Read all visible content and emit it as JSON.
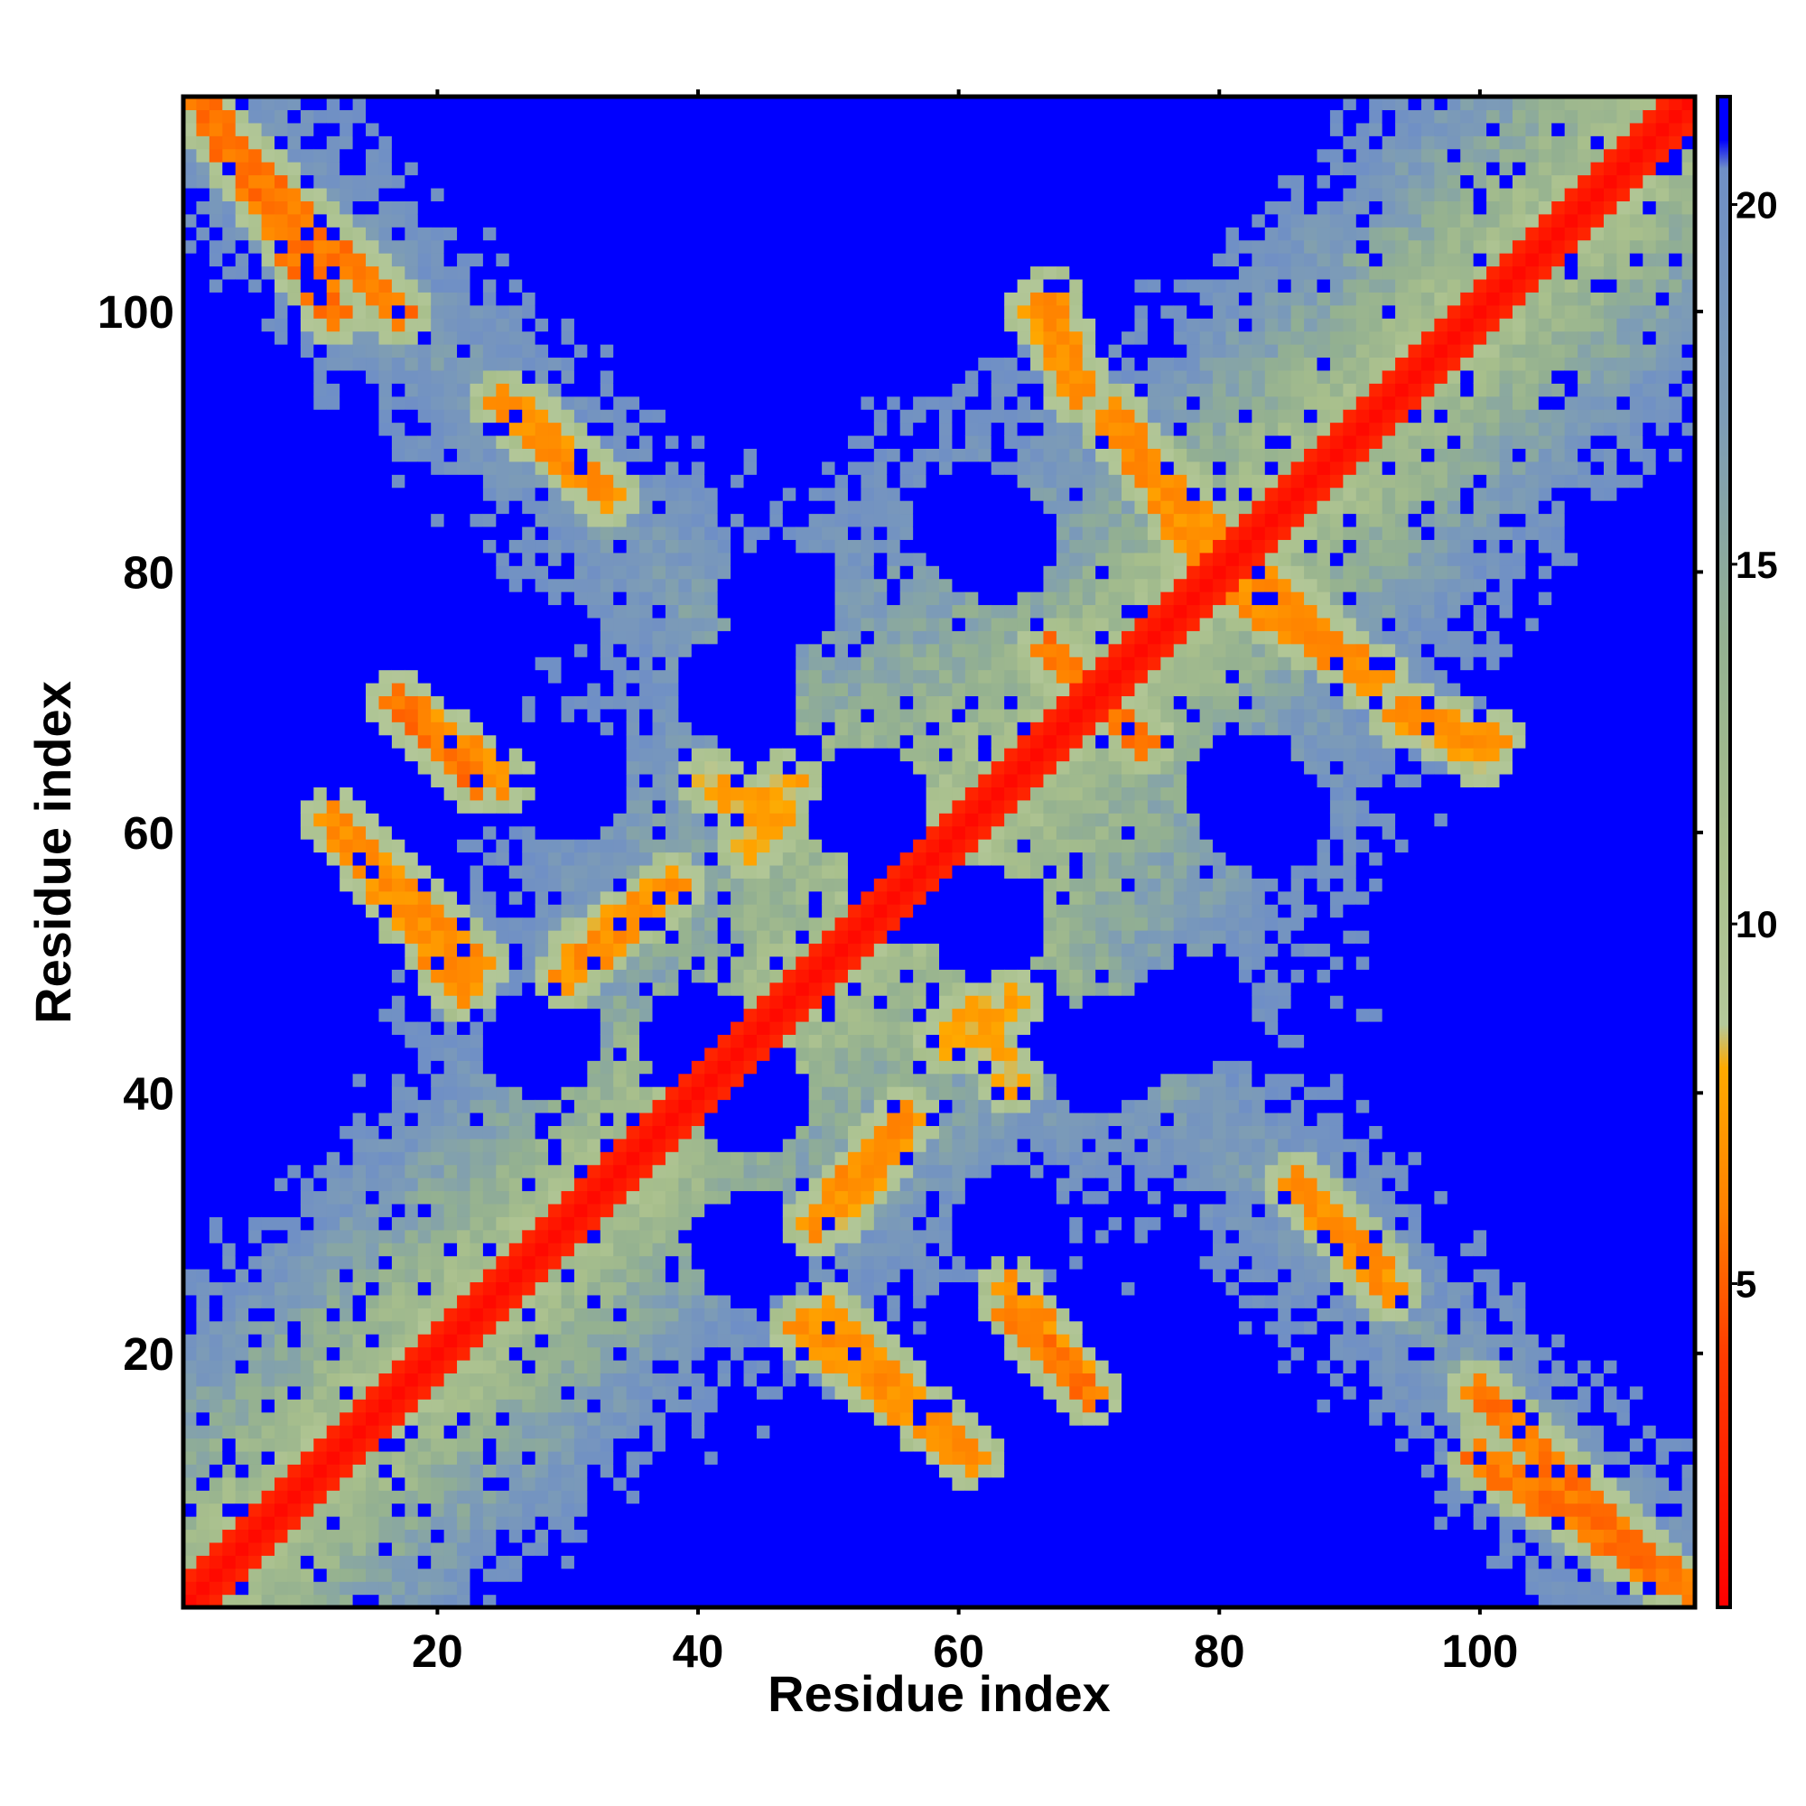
{
  "chart_data": {
    "type": "heatmap",
    "title": "",
    "xlabel": "Residue index",
    "ylabel": "Residue index",
    "n": 116,
    "xlim": [
      0.5,
      116.5
    ],
    "ylim": [
      0.5,
      116.5
    ],
    "xticks": [
      20,
      40,
      60,
      80,
      100
    ],
    "yticks": [
      20,
      40,
      60,
      80,
      100
    ],
    "colorbar": {
      "ticks": [
        5,
        10,
        15,
        20
      ],
      "range": [
        0.5,
        21.5
      ],
      "stops": [
        {
          "v": 0.5,
          "color": "#ff0000"
        },
        {
          "v": 4.0,
          "color": "#ff3c00"
        },
        {
          "v": 6.0,
          "color": "#ff8000"
        },
        {
          "v": 8.0,
          "color": "#ffaa00"
        },
        {
          "v": 8.6,
          "color": "#b4c89a"
        },
        {
          "v": 11.0,
          "color": "#a8bf8c"
        },
        {
          "v": 14.0,
          "color": "#93b091"
        },
        {
          "v": 17.0,
          "color": "#7d9cb6"
        },
        {
          "v": 20.5,
          "color": "#6f8fc6"
        },
        {
          "v": 20.9,
          "color": "#0000ff"
        },
        {
          "v": 21.5,
          "color": "#0000ff"
        }
      ],
      "cap_value": 21
    },
    "features": {
      "main_diagonal": {
        "description_values": "distance ~1-3 on |i-j|<=3",
        "width": 3
      },
      "anti_diagonal_bands": [
        {
          "from": [
            1,
            116
          ],
          "to": [
            30,
            84
          ]
        },
        {
          "from": [
            30,
            84
          ],
          "to": [
            58,
            56
          ]
        },
        {
          "from": [
            84,
            30
          ],
          "to": [
            116,
            1
          ]
        }
      ],
      "contact_segments": [
        {
          "x": [
            2,
            12
          ],
          "y": [
            116,
            100
          ],
          "value": 5
        },
        {
          "x": [
            25,
            33
          ],
          "y": [
            93,
            86
          ],
          "value": 6
        },
        {
          "x": [
            17,
            23
          ],
          "y": [
            70,
            64
          ],
          "value": 5
        },
        {
          "x": [
            12,
            22
          ],
          "y": [
            61,
            48
          ],
          "value": 6
        },
        {
          "x": [
            30,
            38
          ],
          "y": [
            49,
            56
          ],
          "value": 6
        },
        {
          "x": [
            44,
            47
          ],
          "y": [
            59,
            64
          ],
          "value": 7
        },
        {
          "x": [
            50,
            60
          ],
          "y": [
            23,
            13
          ],
          "value": 6
        },
        {
          "x": [
            64,
            70
          ],
          "y": [
            25,
            17
          ],
          "value": 6
        },
        {
          "x": [
            51,
            56
          ],
          "y": [
            31,
            38
          ],
          "value": 7
        },
        {
          "x": [
            67,
            69
          ],
          "y": [
            101,
            94
          ],
          "value": 6
        },
        {
          "x": [
            72,
            80
          ],
          "y": [
            91,
            83
          ],
          "value": 6
        },
        {
          "x": [
            82,
            92
          ],
          "y": [
            78,
            72
          ],
          "value": 6
        },
        {
          "x": [
            95,
            100
          ],
          "y": [
            69,
            66
          ],
          "value": 7
        },
        {
          "x": [
            86,
            92
          ],
          "y": [
            33,
            27
          ],
          "value": 6
        },
        {
          "x": [
            100,
            114
          ],
          "y": [
            17,
            3
          ],
          "value": 5
        },
        {
          "x": [
            67,
            74
          ],
          "y": [
            74,
            67
          ],
          "value": 5
        },
        {
          "x": [
            61,
            64
          ],
          "y": [
            46,
            41
          ],
          "value": 7
        }
      ],
      "blue_holes_centers": [
        [
          46,
          78
        ],
        [
          63,
          82
        ],
        [
          84,
          61
        ],
        [
          56,
          56
        ],
        [
          40,
          44
        ],
        [
          44,
          28
        ],
        [
          64,
          30
        ],
        [
          71,
          43
        ],
        [
          62,
          53
        ],
        [
          46,
          64
        ]
      ]
    }
  }
}
